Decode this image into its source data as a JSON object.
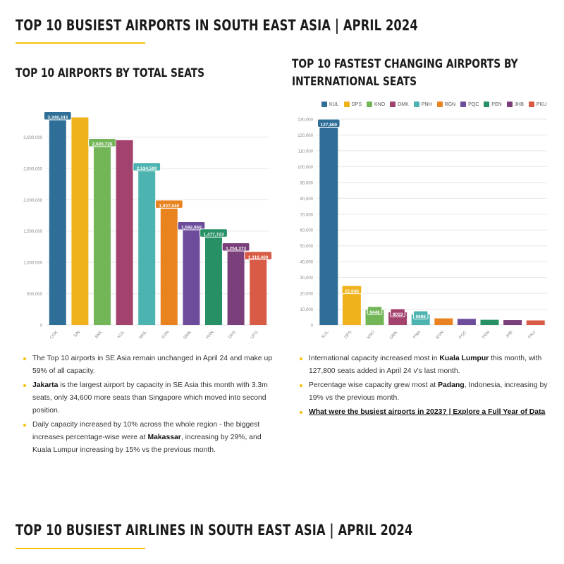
{
  "page": {
    "title": "TOP 10 BUSIEST AIRPORTS IN SOUTH EAST ASIA | APRIL 2024",
    "bottom_title": "TOP 10 BUSIEST AIRLINES IN SOUTH EAST ASIA | APRIL 2024"
  },
  "left": {
    "heading": "TOP 10 AIRPORTS BY TOTAL SEATS",
    "bullets": [
      {
        "pre": "The Top 10 airports in SE Asia remain unchanged in April 24 and make up 59% of all capacity.",
        "bold": "",
        "post": ""
      },
      {
        "pre": "",
        "bold": "Jakarta",
        "post": " is the largest airport by capacity in SE Asia this month with 3.3m seats, only 34,600 more seats than Singapore which moved into second position."
      },
      {
        "pre": "Daily capacity increased by 10% across the whole region - the biggest increases percentage-wise were at ",
        "bold": "Makassar",
        "post": ", increasing by 29%, and Kuala Lumpur increasing by 15% vs the previous month."
      }
    ]
  },
  "right": {
    "heading_line1": "TOP 10 FASTEST CHANGING AIRPORTS BY",
    "heading_line2": "INTERNATIONAL SEATS",
    "bullets": [
      {
        "pre": "International capacity increased most in ",
        "bold": "Kuala Lumpur",
        "post": " this month, with 127,800 seats added in April 24 v's last month."
      },
      {
        "pre": "Percentage wise capacity grew most at ",
        "bold": "Padang",
        "post": ", Indonesia, increasing by 19% vs the previous month."
      }
    ],
    "link": "What were the busiest airports in 2023? | Explore a Full Year of Data"
  },
  "chart_data": [
    {
      "type": "bar",
      "title": "TOP 10 AIRPORTS BY TOTAL SEATS",
      "categories": [
        "CGK",
        "SIN",
        "BKK",
        "KUL",
        "MNL",
        "SGN",
        "DMK",
        "HAN",
        "DPS",
        "UPG"
      ],
      "values": [
        3348343,
        3313743,
        2920726,
        2950000,
        2534590,
        1937040,
        1592950,
        1477723,
        1254373,
        1116400
      ],
      "labels": [
        "3,348,343",
        "",
        "2,920,726",
        "",
        "2,534,590",
        "1,937,040",
        "1,592,950",
        "1,477,723",
        "1,254,373",
        "1,116,400"
      ],
      "colors": [
        "#2f6f97",
        "#efb21b",
        "#73b657",
        "#a4426e",
        "#4cb3b1",
        "#e8831f",
        "#6d4c9c",
        "#279064",
        "#7b3f7b",
        "#d85b45"
      ],
      "ylim": [
        0,
        3500000
      ],
      "yticks": [
        0,
        500000,
        1000000,
        1500000,
        2000000,
        2500000,
        3000000
      ],
      "ytick_labels": [
        "0",
        "500,000",
        "1,000,000",
        "1,500,000",
        "2,000,000",
        "2,500,000",
        "3,000,000"
      ],
      "grid": true
    },
    {
      "type": "bar",
      "title": "TOP 10 FASTEST CHANGING AIRPORTS BY INTERNATIONAL SEATS",
      "categories": [
        "KUL",
        "DPS",
        "KNO",
        "DMK",
        "PNH",
        "RGN",
        "PQC",
        "PEN",
        "JHB",
        "PKU"
      ],
      "values": [
        127800,
        22648,
        9446,
        8019,
        6686,
        4200,
        3900,
        3300,
        3100,
        2900
      ],
      "labels": [
        "127,800",
        "22,648",
        "9446",
        "8019",
        "6686",
        "",
        "",
        "",
        "",
        ""
      ],
      "colors": [
        "#2f6f97",
        "#efb21b",
        "#73b657",
        "#a4426e",
        "#4cb3b1",
        "#e8831f",
        "#6d4c9c",
        "#279064",
        "#7b3f7b",
        "#d85b45"
      ],
      "legend": [
        "KUL",
        "DPS",
        "KNO",
        "DMK",
        "PNH",
        "RGN",
        "PQC",
        "PEN",
        "JHB",
        "PKU"
      ],
      "legend_position": "top",
      "ylim": [
        0,
        130000
      ],
      "yticks": [
        0,
        10000,
        20000,
        30000,
        40000,
        50000,
        60000,
        70000,
        80000,
        90000,
        100000,
        110000,
        120000,
        130000
      ],
      "ytick_labels": [
        "0",
        "10,000",
        "20,000",
        "30,000",
        "40,000",
        "50,000",
        "60,000",
        "70,000",
        "80,000",
        "90,000",
        "100,000",
        "110,000",
        "120,000",
        "130,000"
      ],
      "grid": true
    }
  ]
}
